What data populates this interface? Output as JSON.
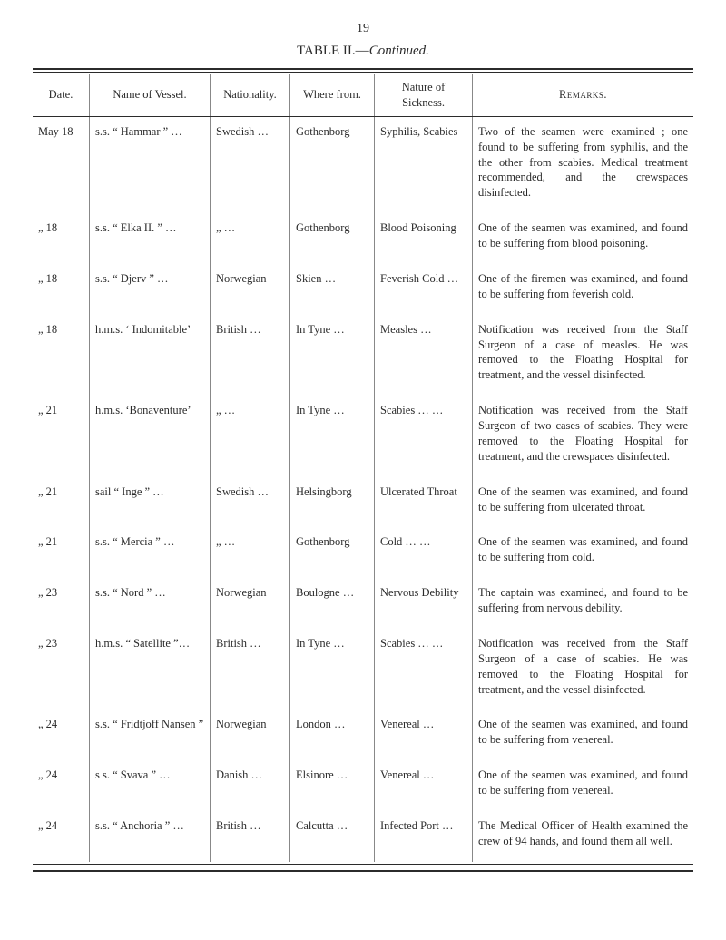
{
  "page_number": "19",
  "title_prefix": "TABLE II.—",
  "title_suffix": "Continued.",
  "columns": {
    "date": "Date.",
    "vessel": "Name of Vessel.",
    "nationality": "Nationality.",
    "where": "Where from.",
    "nature": "Nature of Sickness.",
    "remarks": "Remarks."
  },
  "rows": [
    {
      "date": "May 18",
      "vessel": "s.s. “ Hammar ”  …",
      "nationality": "Swedish …",
      "where": "Gothenborg",
      "nature": "Syphilis, Scabies",
      "remarks": "Two of the seamen were examined ; one found to be suffering from syphilis, and the the other from scabies. Medical treatment recommended, and the crewspaces disinfected."
    },
    {
      "date": "„  18",
      "vessel": "s.s. “ Elka II. ”  …",
      "nationality": "„   …",
      "where": "Gothenborg",
      "nature": "Blood Poisoning",
      "remarks": "One of the seamen was examined, and found to be suffering from blood poisoning."
    },
    {
      "date": "„  18",
      "vessel": "s.s. “ Djerv ”     …",
      "nationality": "Norwegian",
      "where": "Skien     …",
      "nature": "Feverish Cold …",
      "remarks": "One of the firemen was examined, and found to be suffering from feverish cold."
    },
    {
      "date": "„  18",
      "vessel": "h.m.s. ‘ Indomitable’",
      "nationality": "British …",
      "where": "In Tyne  …",
      "nature": "Measles       …",
      "remarks": "Notification was received from the Staff Surgeon of a case of measles. He was removed to the Floating Hospital for treatment, and the vessel disinfected."
    },
    {
      "date": "„  21",
      "vessel": "h.m.s. ‘Bonaventure’",
      "nationality": "„   …",
      "where": "In Tyne  …",
      "nature": "Scabies …   …",
      "remarks": "Notification was received from the Staff Surgeon of two cases of scabies. They were removed to the Floating Hospital for treatment, and the crewspaces disinfected."
    },
    {
      "date": "„  21",
      "vessel": "sail “ Inge ”     …",
      "nationality": "Swedish …",
      "where": "Helsingborg",
      "nature": "Ulcerated Throat",
      "remarks": "One of the seamen was examined, and found to be suffering from ulcerated throat."
    },
    {
      "date": "„  21",
      "vessel": "s.s. “ Mercia ”   …",
      "nationality": "„   …",
      "where": "Gothenborg",
      "nature": "Cold    …   …",
      "remarks": "One of the seamen was examined, and found to be suffering from cold."
    },
    {
      "date": "„  23",
      "vessel": "s.s. “ Nord ”     …",
      "nationality": "Norwegian",
      "where": "Boulogne …",
      "nature": "Nervous Debility",
      "remarks": "The captain was examined, and found to be suffering from nervous debility."
    },
    {
      "date": "„  23",
      "vessel": "h.m.s. “ Satellite ”…",
      "nationality": "British …",
      "where": "In Tyne  …",
      "nature": "Scabies …   …",
      "remarks": "Notification was received from the Staff Surgeon of a case of scabies. He was removed to the Floating Hospital for treatment, and the vessel disinfected."
    },
    {
      "date": "„  24",
      "vessel": "s.s. “ Fridtjoff Nansen ”",
      "nationality": "Norwegian",
      "where": "London   …",
      "nature": "Venereal      …",
      "remarks": "One of the seamen was examined, and found to be suffering from venereal."
    },
    {
      "date": "„  24",
      "vessel": "s s. “ Svava ”    …",
      "nationality": "Danish …",
      "where": "Elsinore  …",
      "nature": "Venereal      …",
      "remarks": "One of the seamen was examined, and found to be suffering from venereal."
    },
    {
      "date": "„  24",
      "vessel": "s.s. “ Anchoria ” …",
      "nationality": "British …",
      "where": "Calcutta  …",
      "nature": "Infected Port …",
      "remarks": "The Medical Officer of Health examined the crew of 94 hands, and found them all well."
    }
  ]
}
